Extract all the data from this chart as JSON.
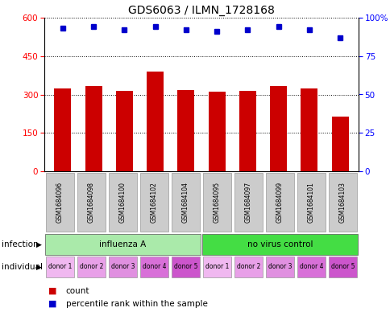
{
  "title": "GDS6063 / ILMN_1728168",
  "samples": [
    "GSM1684096",
    "GSM1684098",
    "GSM1684100",
    "GSM1684102",
    "GSM1684104",
    "GSM1684095",
    "GSM1684097",
    "GSM1684099",
    "GSM1684101",
    "GSM1684103"
  ],
  "counts": [
    323,
    333,
    315,
    390,
    318,
    310,
    315,
    333,
    325,
    215
  ],
  "percentile_ranks": [
    93,
    94,
    92,
    94,
    92,
    91,
    92,
    94,
    92,
    87
  ],
  "ylim_left": [
    0,
    600
  ],
  "ylim_right": [
    0,
    100
  ],
  "yticks_left": [
    0,
    150,
    300,
    450,
    600
  ],
  "yticks_right": [
    0,
    25,
    50,
    75,
    100
  ],
  "bar_color": "#cc0000",
  "dot_color": "#0000cc",
  "infection_groups": [
    {
      "label": "influenza A",
      "start": 0,
      "end": 5,
      "color": "#aaeaaa"
    },
    {
      "label": "no virus control",
      "start": 5,
      "end": 10,
      "color": "#44dd44"
    }
  ],
  "individual_labels": [
    "donor 1",
    "donor 2",
    "donor 3",
    "donor 4",
    "donor 5",
    "donor 1",
    "donor 2",
    "donor 3",
    "donor 4",
    "donor 5"
  ],
  "individual_colors": [
    "#f0b8f0",
    "#e8a0e8",
    "#e090e0",
    "#d870d8",
    "#cc55cc",
    "#f0b8f0",
    "#e8a0e8",
    "#e090e0",
    "#d870d8",
    "#cc55cc"
  ],
  "label_infection": "infection",
  "label_individual": "individual",
  "legend_count_label": "count",
  "legend_percentile_label": "percentile rank within the sample",
  "title_fontsize": 10,
  "bar_fontsize": 6,
  "tick_fontsize": 7.5,
  "annot_fontsize": 7.5,
  "sample_fontsize": 5.5,
  "donor_fontsize": 5.5,
  "legend_fontsize": 7.5
}
